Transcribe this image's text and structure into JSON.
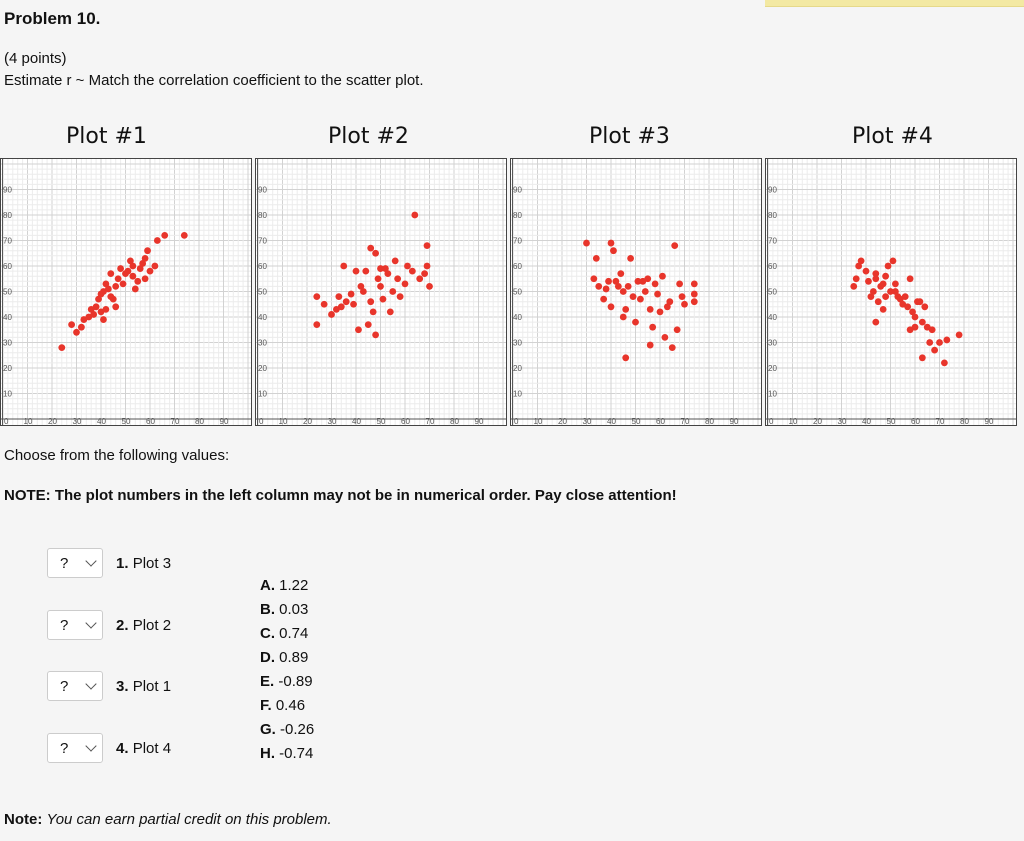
{
  "problem": {
    "title": "Problem 10.",
    "points": "(4 points)",
    "instructions": "Estimate r ~ Match the correlation coefficient to the scatter plot."
  },
  "choose_text": "Choose from the following values:",
  "note_bold": "NOTE: The plot numbers in the left column may not be in numerical order. Pay close attention!",
  "rows": [
    {
      "select_value": "?",
      "number": "1.",
      "label": "Plot 3"
    },
    {
      "select_value": "?",
      "number": "2.",
      "label": "Plot 2"
    },
    {
      "select_value": "?",
      "number": "3.",
      "label": "Plot 1"
    },
    {
      "select_value": "?",
      "number": "4.",
      "label": "Plot 4"
    }
  ],
  "options": [
    {
      "letter": "A.",
      "value": "1.22"
    },
    {
      "letter": "B.",
      "value": "0.03"
    },
    {
      "letter": "C.",
      "value": "0.74"
    },
    {
      "letter": "D.",
      "value": "0.89"
    },
    {
      "letter": "E.",
      "value": "-0.89"
    },
    {
      "letter": "F.",
      "value": "0.46"
    },
    {
      "letter": "G.",
      "value": "-0.26"
    },
    {
      "letter": "H.",
      "value": "-0.74"
    }
  ],
  "footnote": {
    "label": "Note",
    "text": "You can earn partial credit on this problem."
  },
  "colors": {
    "point": "#e8352b",
    "highlight": "#f3e9a3"
  },
  "chart_data": [
    {
      "type": "scatter",
      "title": "Plot #1",
      "xlim": [
        0,
        100
      ],
      "ylim": [
        0,
        100
      ],
      "x_ticks": [
        "0",
        "10",
        "20",
        "30",
        "40",
        "50",
        "60",
        "70",
        "80",
        "90"
      ],
      "y_ticks": [
        "10",
        "20",
        "30",
        "40",
        "50",
        "60",
        "70",
        "80",
        "90"
      ],
      "points": [
        [
          24,
          28
        ],
        [
          28,
          37
        ],
        [
          30,
          34
        ],
        [
          32,
          36
        ],
        [
          33,
          39
        ],
        [
          35,
          40
        ],
        [
          37,
          41
        ],
        [
          38,
          44
        ],
        [
          40,
          42
        ],
        [
          41,
          39
        ],
        [
          39,
          47
        ],
        [
          41,
          50
        ],
        [
          43,
          51
        ],
        [
          44,
          48
        ],
        [
          45,
          47
        ],
        [
          46,
          52
        ],
        [
          47,
          55
        ],
        [
          49,
          53
        ],
        [
          50,
          57
        ],
        [
          51,
          58
        ],
        [
          53,
          56
        ],
        [
          53,
          60
        ],
        [
          55,
          54
        ],
        [
          56,
          59
        ],
        [
          57,
          61
        ],
        [
          58,
          63
        ],
        [
          59,
          66
        ],
        [
          60,
          58
        ],
        [
          62,
          60
        ],
        [
          63,
          70
        ],
        [
          66,
          72
        ],
        [
          74,
          72
        ],
        [
          42,
          53
        ],
        [
          44,
          57
        ],
        [
          48,
          59
        ],
        [
          54,
          51
        ],
        [
          46,
          44
        ],
        [
          40,
          49
        ],
        [
          52,
          62
        ],
        [
          58,
          55
        ],
        [
          36,
          43
        ],
        [
          42,
          43
        ]
      ]
    },
    {
      "type": "scatter",
      "title": "Plot #2",
      "xlim": [
        0,
        100
      ],
      "ylim": [
        0,
        100
      ],
      "x_ticks": [
        "0",
        "10",
        "20",
        "30",
        "40",
        "50",
        "60",
        "70",
        "80",
        "90"
      ],
      "y_ticks": [
        "10",
        "20",
        "30",
        "40",
        "50",
        "60",
        "70",
        "80",
        "90"
      ],
      "points": [
        [
          24,
          48
        ],
        [
          24,
          37
        ],
        [
          27,
          45
        ],
        [
          30,
          41
        ],
        [
          32,
          43
        ],
        [
          33,
          48
        ],
        [
          34,
          44
        ],
        [
          35,
          60
        ],
        [
          36,
          46
        ],
        [
          38,
          49
        ],
        [
          39,
          45
        ],
        [
          40,
          58
        ],
        [
          41,
          35
        ],
        [
          42,
          52
        ],
        [
          43,
          50
        ],
        [
          44,
          58
        ],
        [
          45,
          37
        ],
        [
          46,
          67
        ],
        [
          46,
          46
        ],
        [
          48,
          33
        ],
        [
          48,
          65
        ],
        [
          49,
          55
        ],
        [
          50,
          52
        ],
        [
          51,
          47
        ],
        [
          52,
          59
        ],
        [
          53,
          57
        ],
        [
          54,
          42
        ],
        [
          55,
          50
        ],
        [
          56,
          62
        ],
        [
          57,
          55
        ],
        [
          58,
          48
        ],
        [
          60,
          53
        ],
        [
          61,
          60
        ],
        [
          63,
          58
        ],
        [
          64,
          80
        ],
        [
          66,
          55
        ],
        [
          68,
          57
        ],
        [
          69,
          60
        ],
        [
          69,
          68
        ],
        [
          70,
          52
        ],
        [
          47,
          42
        ],
        [
          50,
          59
        ]
      ]
    },
    {
      "type": "scatter",
      "title": "Plot #3",
      "xlim": [
        0,
        100
      ],
      "ylim": [
        0,
        100
      ],
      "x_ticks": [
        "0",
        "10",
        "20",
        "30",
        "40",
        "50",
        "60",
        "70",
        "80",
        "90"
      ],
      "y_ticks": [
        "10",
        "20",
        "30",
        "40",
        "50",
        "60",
        "70",
        "80",
        "90"
      ],
      "points": [
        [
          30,
          69
        ],
        [
          33,
          55
        ],
        [
          34,
          63
        ],
        [
          35,
          52
        ],
        [
          37,
          47
        ],
        [
          38,
          51
        ],
        [
          39,
          54
        ],
        [
          40,
          44
        ],
        [
          40,
          69
        ],
        [
          41,
          66
        ],
        [
          42,
          54
        ],
        [
          43,
          52
        ],
        [
          44,
          57
        ],
        [
          45,
          40
        ],
        [
          45,
          50
        ],
        [
          46,
          43
        ],
        [
          47,
          52
        ],
        [
          48,
          63
        ],
        [
          49,
          48
        ],
        [
          50,
          38
        ],
        [
          51,
          54
        ],
        [
          52,
          47
        ],
        [
          53,
          54
        ],
        [
          54,
          50
        ],
        [
          55,
          55
        ],
        [
          56,
          43
        ],
        [
          57,
          36
        ],
        [
          58,
          53
        ],
        [
          59,
          49
        ],
        [
          60,
          42
        ],
        [
          61,
          56
        ],
        [
          62,
          32
        ],
        [
          63,
          44
        ],
        [
          64,
          46
        ],
        [
          65,
          28
        ],
        [
          66,
          68
        ],
        [
          67,
          35
        ],
        [
          68,
          53
        ],
        [
          69,
          48
        ],
        [
          70,
          45
        ],
        [
          74,
          53
        ],
        [
          74,
          49
        ],
        [
          74,
          46
        ],
        [
          46,
          24
        ],
        [
          56,
          29
        ]
      ]
    },
    {
      "type": "scatter",
      "title": "Plot #4",
      "xlim": [
        0,
        100
      ],
      "ylim": [
        0,
        100
      ],
      "x_ticks": [
        "0",
        "10",
        "20",
        "30",
        "40",
        "50",
        "60",
        "70",
        "80",
        "90"
      ],
      "y_ticks": [
        "10",
        "20",
        "30",
        "40",
        "50",
        "60",
        "70",
        "80",
        "90"
      ],
      "points": [
        [
          35,
          52
        ],
        [
          36,
          55
        ],
        [
          37,
          60
        ],
        [
          38,
          62
        ],
        [
          40,
          58
        ],
        [
          41,
          54
        ],
        [
          42,
          48
        ],
        [
          43,
          50
        ],
        [
          44,
          55
        ],
        [
          44,
          57
        ],
        [
          45,
          46
        ],
        [
          46,
          52
        ],
        [
          47,
          53
        ],
        [
          48,
          56
        ],
        [
          48,
          48
        ],
        [
          49,
          60
        ],
        [
          50,
          50
        ],
        [
          51,
          62
        ],
        [
          52,
          53
        ],
        [
          53,
          48
        ],
        [
          54,
          47
        ],
        [
          55,
          45
        ],
        [
          56,
          48
        ],
        [
          57,
          44
        ],
        [
          58,
          55
        ],
        [
          59,
          42
        ],
        [
          60,
          40
        ],
        [
          60,
          36
        ],
        [
          61,
          46
        ],
        [
          62,
          46
        ],
        [
          63,
          38
        ],
        [
          64,
          44
        ],
        [
          65,
          36
        ],
        [
          66,
          30
        ],
        [
          67,
          35
        ],
        [
          68,
          27
        ],
        [
          70,
          30
        ],
        [
          72,
          22
        ],
        [
          73,
          31
        ],
        [
          78,
          33
        ],
        [
          44,
          38
        ],
        [
          58,
          35
        ],
        [
          52,
          50
        ],
        [
          47,
          43
        ],
        [
          63,
          24
        ]
      ]
    }
  ]
}
